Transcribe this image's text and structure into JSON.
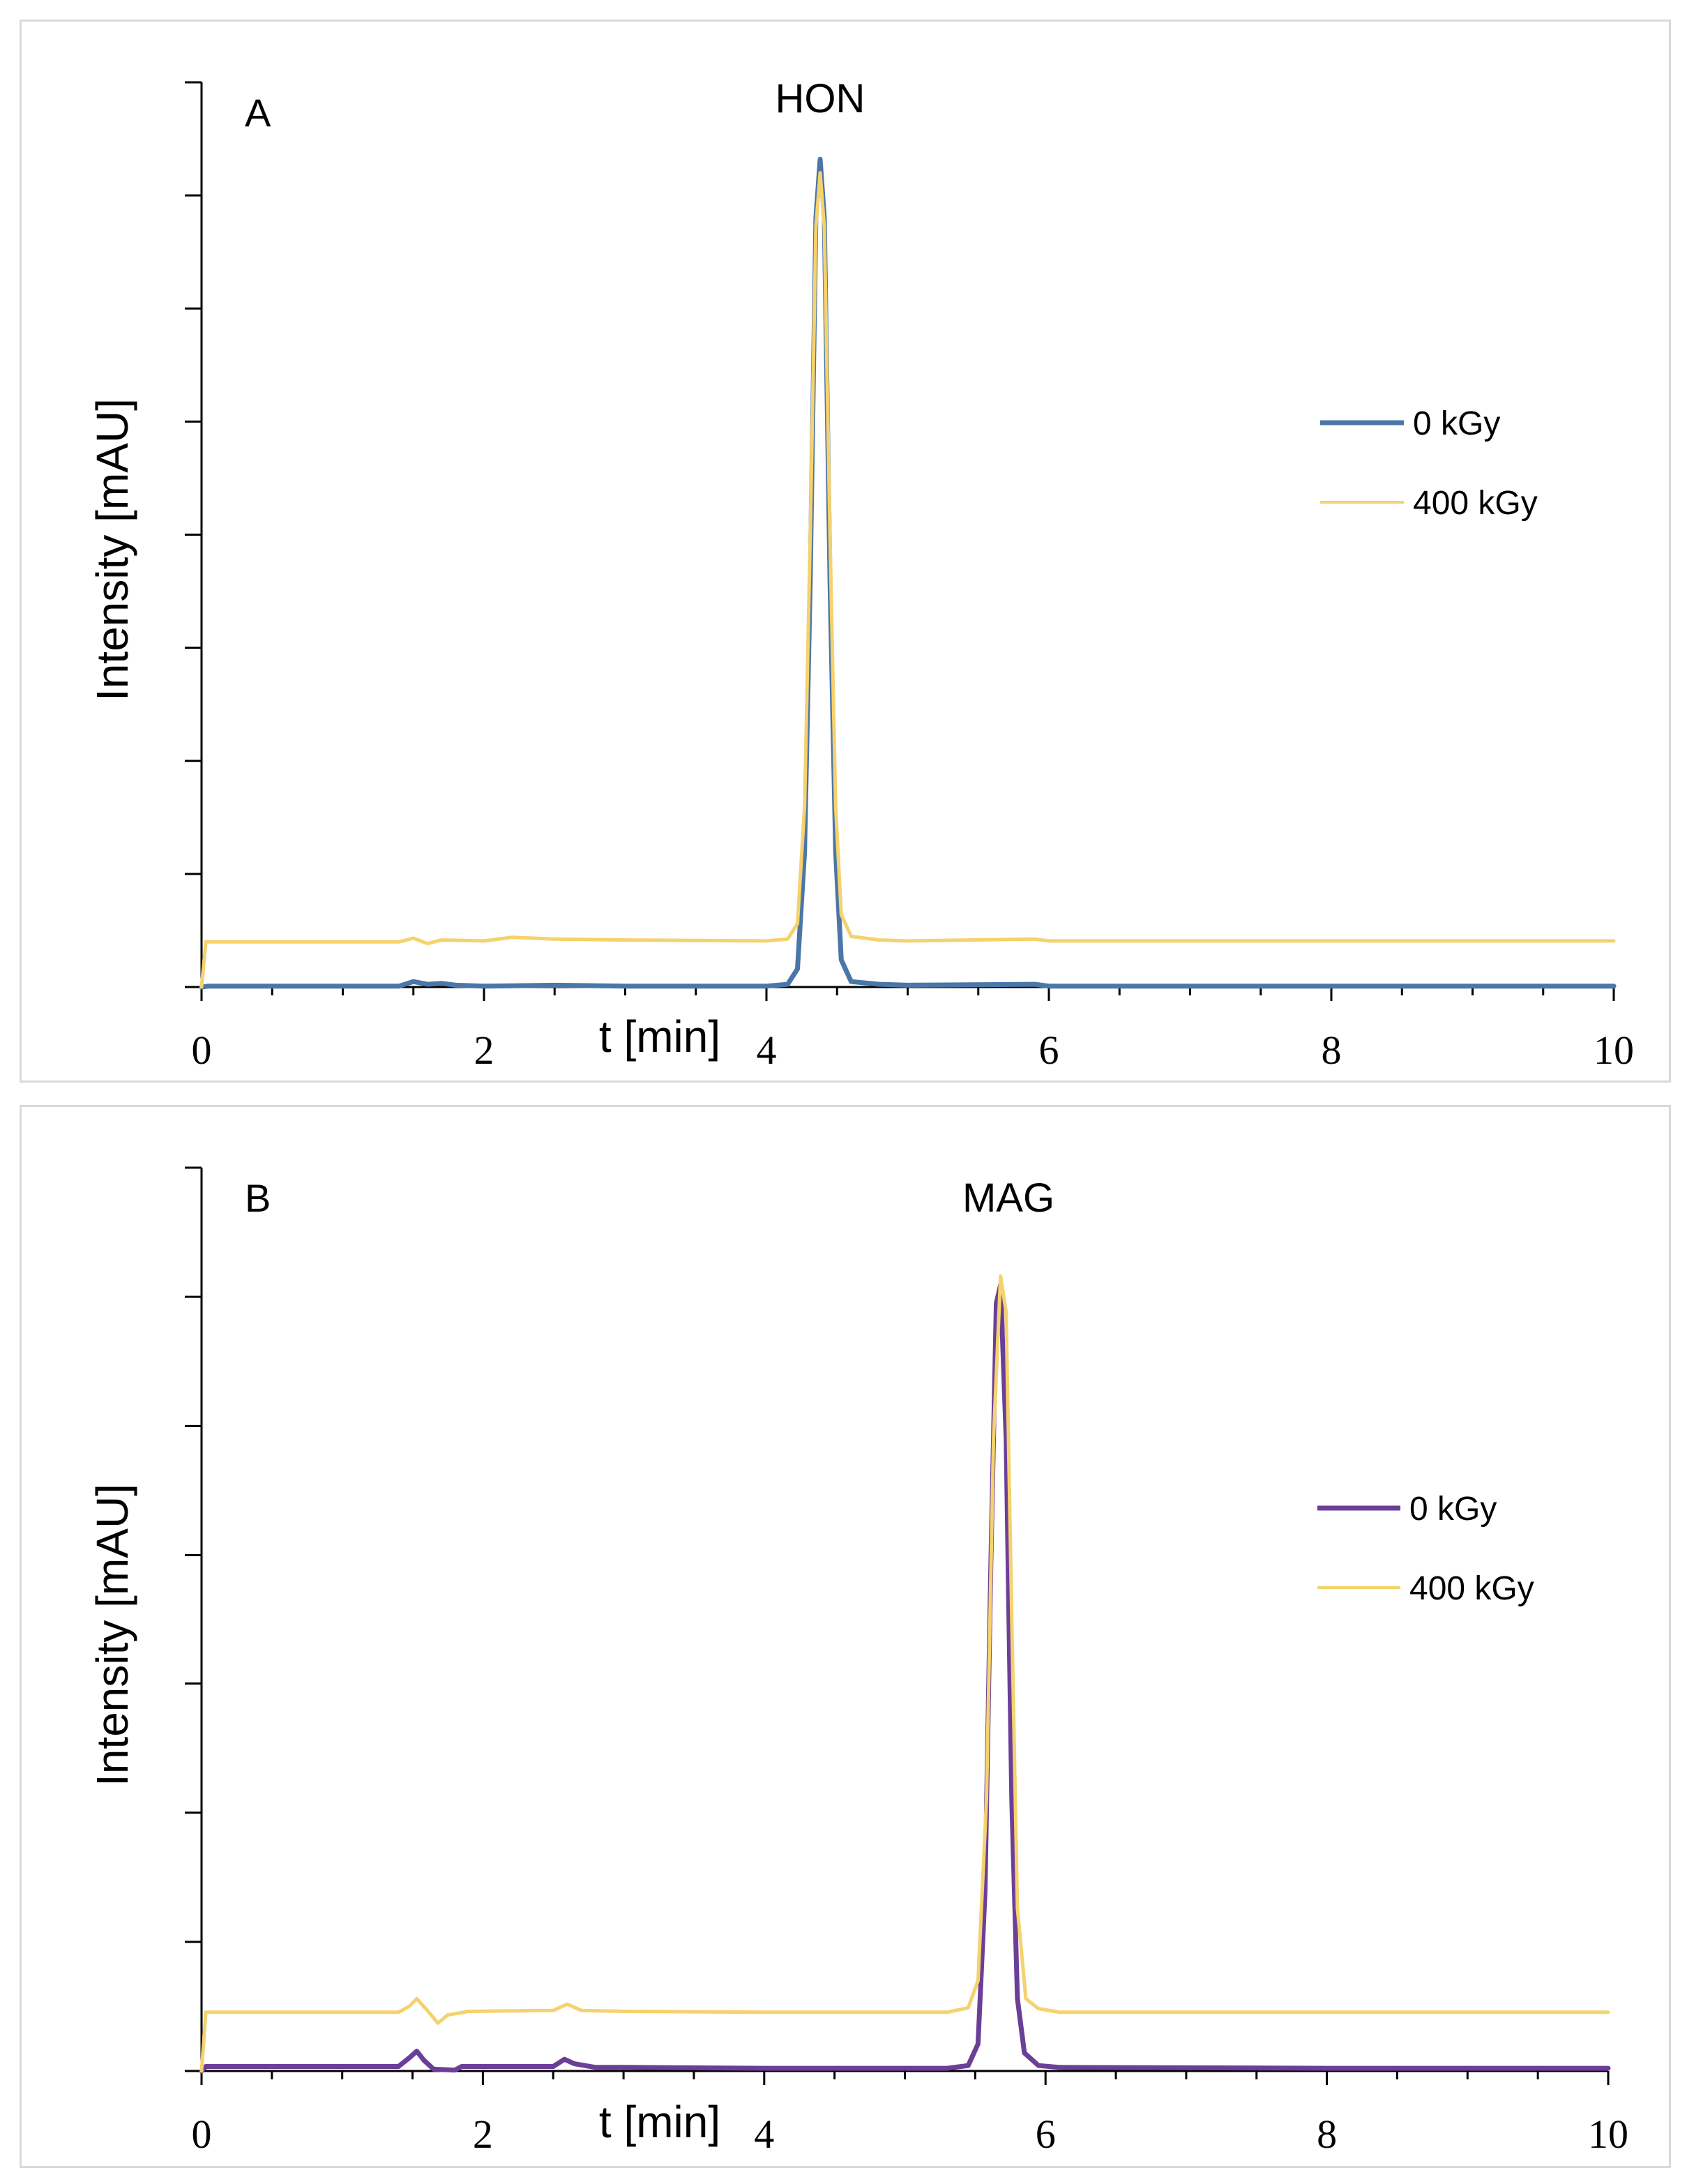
{
  "chart_data": [
    {
      "type": "line",
      "panel_label": "A",
      "annotation": "HON",
      "xlabel": "t [min]",
      "ylabel": "Intensity [mAU]",
      "xlim": [
        0,
        10
      ],
      "ylim": [
        0,
        100
      ],
      "x_ticks": [
        "0",
        "2",
        "4",
        "6",
        "8",
        "10"
      ],
      "y_tick_values": [
        0,
        12.5,
        25,
        37.5,
        50,
        62.5,
        75,
        87.5,
        100
      ],
      "grid": false,
      "legend_position": "right",
      "series": [
        {
          "name": "0 kGy",
          "color": "#4a76a8",
          "points": [
            [
              0,
              0
            ],
            [
              0.05,
              0.1
            ],
            [
              1.4,
              0.1
            ],
            [
              1.5,
              0.6
            ],
            [
              1.6,
              0.3
            ],
            [
              1.7,
              0.4
            ],
            [
              1.8,
              0.2
            ],
            [
              2.0,
              0.1
            ],
            [
              2.5,
              0.2
            ],
            [
              3.0,
              0.1
            ],
            [
              4.0,
              0.1
            ],
            [
              4.15,
              0.3
            ],
            [
              4.22,
              2
            ],
            [
              4.27,
              15
            ],
            [
              4.31,
              45
            ],
            [
              4.35,
              85
            ],
            [
              4.38,
              91.5
            ],
            [
              4.41,
              85
            ],
            [
              4.45,
              45
            ],
            [
              4.49,
              15
            ],
            [
              4.53,
              3
            ],
            [
              4.6,
              0.6
            ],
            [
              4.8,
              0.3
            ],
            [
              5.0,
              0.2
            ],
            [
              5.9,
              0.3
            ],
            [
              6.0,
              0.1
            ],
            [
              10,
              0.1
            ]
          ]
        },
        {
          "name": "400 kGy",
          "color": "#f5d26e",
          "points": [
            [
              0,
              0
            ],
            [
              0.03,
              5
            ],
            [
              1.4,
              5
            ],
            [
              1.5,
              5.4
            ],
            [
              1.6,
              4.8
            ],
            [
              1.7,
              5.2
            ],
            [
              2.0,
              5.1
            ],
            [
              2.2,
              5.5
            ],
            [
              2.5,
              5.3
            ],
            [
              3.0,
              5.2
            ],
            [
              4.0,
              5.1
            ],
            [
              4.15,
              5.3
            ],
            [
              4.22,
              7
            ],
            [
              4.27,
              20
            ],
            [
              4.31,
              50
            ],
            [
              4.35,
              84
            ],
            [
              4.38,
              90
            ],
            [
              4.41,
              84
            ],
            [
              4.45,
              50
            ],
            [
              4.49,
              20
            ],
            [
              4.53,
              8
            ],
            [
              4.6,
              5.6
            ],
            [
              4.8,
              5.2
            ],
            [
              5.0,
              5.1
            ],
            [
              5.9,
              5.3
            ],
            [
              6.0,
              5.1
            ],
            [
              10,
              5.1
            ]
          ]
        }
      ]
    },
    {
      "type": "line",
      "panel_label": "B",
      "annotation": "MAG",
      "xlabel": "t [min]",
      "ylabel": "Intensity [mAU]",
      "xlim": [
        0,
        10
      ],
      "ylim": [
        0,
        100
      ],
      "x_ticks": [
        "0",
        "2",
        "4",
        "6",
        "8",
        "10"
      ],
      "y_tick_values": [
        0,
        14.3,
        28.6,
        42.9,
        57.1,
        71.4,
        85.7,
        100
      ],
      "grid": false,
      "legend_position": "right",
      "series": [
        {
          "name": "0 kGy",
          "color": "#6b3f98",
          "points": [
            [
              0,
              0
            ],
            [
              0.03,
              0.5
            ],
            [
              1.4,
              0.5
            ],
            [
              1.48,
              1.5
            ],
            [
              1.53,
              2.2
            ],
            [
              1.58,
              1.2
            ],
            [
              1.65,
              0.2
            ],
            [
              1.8,
              0.1
            ],
            [
              1.85,
              0.5
            ],
            [
              2.5,
              0.5
            ],
            [
              2.58,
              1.3
            ],
            [
              2.65,
              0.8
            ],
            [
              2.8,
              0.4
            ],
            [
              3.0,
              0.4
            ],
            [
              4.0,
              0.3
            ],
            [
              5.3,
              0.3
            ],
            [
              5.45,
              0.6
            ],
            [
              5.52,
              3
            ],
            [
              5.57,
              20
            ],
            [
              5.61,
              55
            ],
            [
              5.65,
              85
            ],
            [
              5.68,
              87
            ],
            [
              5.72,
              70
            ],
            [
              5.76,
              30
            ],
            [
              5.8,
              8
            ],
            [
              5.85,
              2
            ],
            [
              5.95,
              0.6
            ],
            [
              6.1,
              0.4
            ],
            [
              8.0,
              0.3
            ],
            [
              10,
              0.3
            ]
          ]
        },
        {
          "name": "400 kGy",
          "color": "#f5d26e",
          "points": [
            [
              0,
              0
            ],
            [
              0.03,
              6.5
            ],
            [
              1.4,
              6.5
            ],
            [
              1.48,
              7.2
            ],
            [
              1.53,
              8
            ],
            [
              1.6,
              6.8
            ],
            [
              1.68,
              5.3
            ],
            [
              1.75,
              6.2
            ],
            [
              1.9,
              6.6
            ],
            [
              2.5,
              6.7
            ],
            [
              2.6,
              7.4
            ],
            [
              2.7,
              6.7
            ],
            [
              3.0,
              6.6
            ],
            [
              4.0,
              6.5
            ],
            [
              5.3,
              6.5
            ],
            [
              5.45,
              7
            ],
            [
              5.52,
              10
            ],
            [
              5.58,
              30
            ],
            [
              5.63,
              70
            ],
            [
              5.68,
              88
            ],
            [
              5.72,
              84
            ],
            [
              5.76,
              50
            ],
            [
              5.8,
              18
            ],
            [
              5.86,
              8
            ],
            [
              5.95,
              6.9
            ],
            [
              6.1,
              6.5
            ],
            [
              8.0,
              6.5
            ],
            [
              10,
              6.5
            ]
          ]
        }
      ]
    }
  ]
}
